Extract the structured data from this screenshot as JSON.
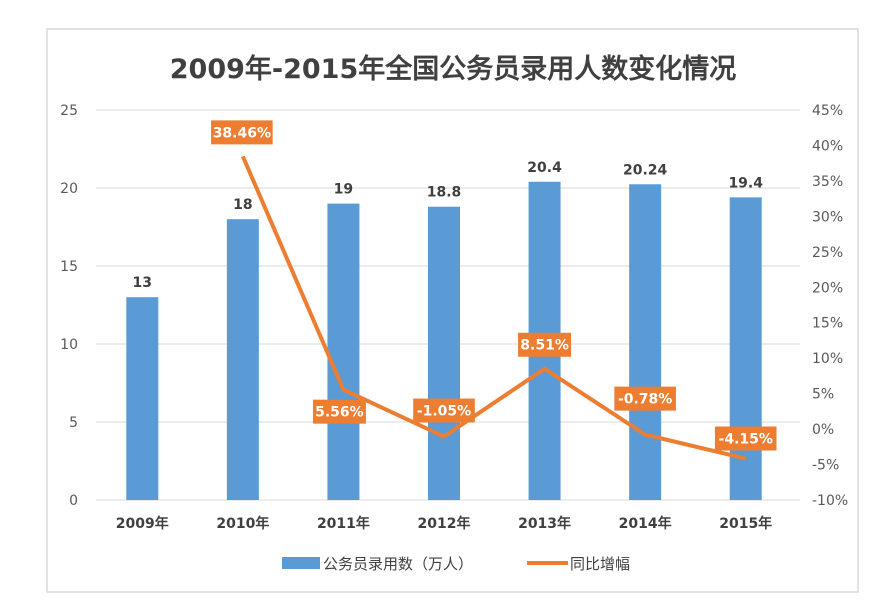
{
  "chart_data": {
    "type": "bar+line",
    "title": "2009年-2015年全国公务员录用人数变化情况",
    "categories": [
      "2009年",
      "2010年",
      "2011年",
      "2012年",
      "2013年",
      "2014年",
      "2015年"
    ],
    "series": [
      {
        "name": "公务员录用数（万人）",
        "type": "bar",
        "axis": "left",
        "color": "#5b9bd5",
        "values": [
          13,
          18,
          19,
          18.8,
          20.4,
          20.24,
          19.4
        ],
        "labels": [
          "13",
          "18",
          "19",
          "18.8",
          "20.4",
          "20.24",
          "19.4"
        ]
      },
      {
        "name": "同比增幅",
        "type": "line",
        "axis": "right",
        "color": "#ed7d31",
        "values": [
          null,
          38.46,
          5.56,
          -1.05,
          8.51,
          -0.78,
          -4.15
        ],
        "labels": [
          "",
          "38.46%",
          "5.56%",
          "-1.05%",
          "8.51%",
          "-0.78%",
          "-4.15%"
        ]
      }
    ],
    "left_axis": {
      "range": [
        0,
        25
      ],
      "ticks": [
        "0",
        "5",
        "10",
        "15",
        "20",
        "25"
      ]
    },
    "right_axis": {
      "range": [
        -10,
        45
      ],
      "unit": "%",
      "ticks": [
        "-10%",
        "-5%",
        "0%",
        "5%",
        "10%",
        "15%",
        "20%",
        "25%",
        "30%",
        "35%",
        "40%",
        "45%"
      ]
    },
    "grid": true,
    "legend_position": "bottom"
  }
}
